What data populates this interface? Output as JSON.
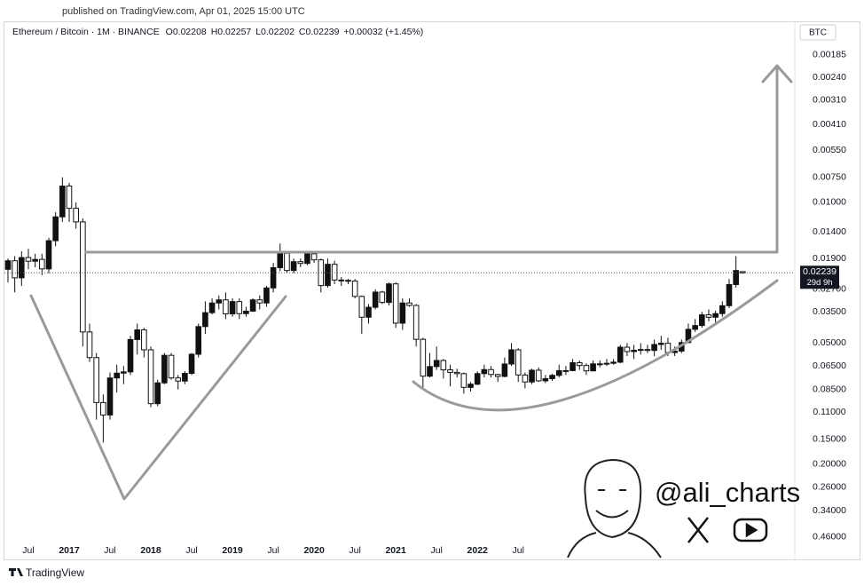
{
  "header": {
    "published": "published on TradingView.com, Apr 01, 2025 15:00 UTC"
  },
  "chart_data": {
    "type": "candlestick",
    "legend": {
      "symbol": "Ethereum / Bitcoin · 1M · BINANCE",
      "o": "O",
      "h": "H",
      "l": "L",
      "c": "C",
      "change": "+0.00032 (+1.45%)"
    },
    "y_unit": "BTC",
    "y_scale": "log",
    "inverted": true,
    "grid": false,
    "up_color": "#ffffff",
    "down_color": "#111111",
    "wick_color": "#111111",
    "countdown": "29d 9h",
    "x": [
      "2016-04",
      "2016-05",
      "2016-06",
      "2016-07",
      "2016-08",
      "2016-09",
      "2016-10",
      "2016-11",
      "2016-12",
      "2017-01",
      "2017-02",
      "2017-03",
      "2017-04",
      "2017-05",
      "2017-06",
      "2017-07",
      "2017-08",
      "2017-09",
      "2017-10",
      "2017-11",
      "2017-12",
      "2018-01",
      "2018-02",
      "2018-03",
      "2018-04",
      "2018-05",
      "2018-06",
      "2018-07",
      "2018-08",
      "2018-09",
      "2018-10",
      "2018-11",
      "2018-12",
      "2019-01",
      "2019-02",
      "2019-03",
      "2019-04",
      "2019-05",
      "2019-06",
      "2019-07",
      "2019-08",
      "2019-09",
      "2019-10",
      "2019-11",
      "2019-12",
      "2020-01",
      "2020-02",
      "2020-03",
      "2020-04",
      "2020-05",
      "2020-06",
      "2020-07",
      "2020-08",
      "2020-09",
      "2020-10",
      "2020-11",
      "2020-12",
      "2021-01",
      "2021-02",
      "2021-03",
      "2021-04",
      "2021-05",
      "2021-06",
      "2021-07",
      "2021-08",
      "2021-09",
      "2021-10",
      "2021-11",
      "2021-12",
      "2022-01",
      "2022-02",
      "2022-03",
      "2022-04",
      "2022-05",
      "2022-06",
      "2022-07",
      "2022-08",
      "2022-09",
      "2022-10",
      "2022-11",
      "2022-12",
      "2023-01",
      "2023-02",
      "2023-03",
      "2023-04",
      "2023-05",
      "2023-06",
      "2023-07",
      "2023-08",
      "2023-09",
      "2023-10",
      "2023-11",
      "2023-12",
      "2024-01",
      "2024-02",
      "2024-03",
      "2024-04",
      "2024-05",
      "2024-06",
      "2024-07",
      "2024-08",
      "2024-09",
      "2024-10",
      "2024-11",
      "2024-12",
      "2025-01",
      "2025-02",
      "2025-03",
      "2025-04"
    ],
    "open": [
      0.0215,
      0.0195,
      0.0237,
      0.0188,
      0.0196,
      0.0192,
      0.0214,
      0.0155,
      0.0118,
      0.0083,
      0.0107,
      0.0125,
      0.044,
      0.059,
      0.0987,
      0.1138,
      0.0745,
      0.0705,
      0.0695,
      0.048,
      0.043,
      0.054,
      0.1,
      0.0788,
      0.0575,
      0.0745,
      0.0772,
      0.0707,
      0.0568,
      0.0414,
      0.0353,
      0.0316,
      0.0305,
      0.0358,
      0.0311,
      0.0357,
      0.0347,
      0.0305,
      0.0316,
      0.0266,
      0.0211,
      0.0179,
      0.0218,
      0.0197,
      0.0201,
      0.018,
      0.0193,
      0.0259,
      0.0203,
      0.0243,
      0.0244,
      0.0246,
      0.0293,
      0.0372,
      0.0332,
      0.0279,
      0.0314,
      0.0254,
      0.0398,
      0.0316,
      0.0325,
      0.0479,
      0.073,
      0.0654,
      0.061,
      0.0679,
      0.0699,
      0.0709,
      0.083,
      0.08,
      0.0709,
      0.0677,
      0.0716,
      0.0732,
      0.0635,
      0.054,
      0.072,
      0.078,
      0.0682,
      0.077,
      0.0751,
      0.0723,
      0.0685,
      0.0685,
      0.0626,
      0.0646,
      0.0687,
      0.0634,
      0.0636,
      0.063,
      0.0622,
      0.0524,
      0.0551,
      0.0543,
      0.0538,
      0.0544,
      0.0508,
      0.0501,
      0.0557,
      0.0548,
      0.0497,
      0.0427,
      0.0409,
      0.0362,
      0.0372,
      0.0357,
      0.0326,
      0.0256,
      0.02208
    ],
    "high": [
      0.025,
      0.028,
      0.026,
      0.0215,
      0.021,
      0.023,
      0.0225,
      0.0165,
      0.0125,
      0.0125,
      0.0135,
      0.052,
      0.062,
      0.12,
      0.156,
      0.12,
      0.088,
      0.08,
      0.072,
      0.057,
      0.059,
      0.104,
      0.103,
      0.08,
      0.076,
      0.085,
      0.08,
      0.072,
      0.059,
      0.045,
      0.036,
      0.034,
      0.038,
      0.037,
      0.038,
      0.037,
      0.035,
      0.034,
      0.033,
      0.028,
      0.022,
      0.0225,
      0.0225,
      0.021,
      0.0205,
      0.02,
      0.028,
      0.0265,
      0.0255,
      0.026,
      0.0255,
      0.03,
      0.045,
      0.04,
      0.034,
      0.032,
      0.0325,
      0.042,
      0.043,
      0.033,
      0.052,
      0.083,
      0.074,
      0.068,
      0.075,
      0.082,
      0.074,
      0.089,
      0.087,
      0.081,
      0.074,
      0.074,
      0.078,
      0.074,
      0.065,
      0.078,
      0.084,
      0.08,
      0.078,
      0.079,
      0.077,
      0.074,
      0.072,
      0.069,
      0.068,
      0.072,
      0.069,
      0.066,
      0.065,
      0.064,
      0.063,
      0.058,
      0.06,
      0.057,
      0.056,
      0.058,
      0.054,
      0.058,
      0.058,
      0.056,
      0.05,
      0.044,
      0.042,
      0.039,
      0.04,
      0.037,
      0.0335,
      0.0265,
      0.02257
    ],
    "low": [
      0.019,
      0.0185,
      0.0175,
      0.017,
      0.018,
      0.018,
      0.015,
      0.0112,
      0.0075,
      0.008,
      0.01,
      0.012,
      0.04,
      0.056,
      0.09,
      0.07,
      0.064,
      0.065,
      0.046,
      0.04,
      0.042,
      0.052,
      0.076,
      0.056,
      0.056,
      0.072,
      0.069,
      0.056,
      0.04,
      0.031,
      0.03,
      0.029,
      0.028,
      0.03,
      0.03,
      0.033,
      0.03,
      0.029,
      0.026,
      0.02,
      0.016,
      0.0175,
      0.019,
      0.019,
      0.0175,
      0.0175,
      0.019,
      0.019,
      0.0195,
      0.0235,
      0.024,
      0.024,
      0.029,
      0.032,
      0.027,
      0.0275,
      0.025,
      0.025,
      0.03,
      0.03,
      0.032,
      0.047,
      0.056,
      0.052,
      0.06,
      0.064,
      0.067,
      0.07,
      0.078,
      0.069,
      0.064,
      0.065,
      0.071,
      0.059,
      0.05,
      0.053,
      0.07,
      0.067,
      0.066,
      0.072,
      0.071,
      0.064,
      0.065,
      0.06,
      0.061,
      0.063,
      0.061,
      0.061,
      0.06,
      0.06,
      0.051,
      0.05,
      0.051,
      0.05,
      0.051,
      0.048,
      0.046,
      0.047,
      0.052,
      0.048,
      0.04,
      0.038,
      0.035,
      0.034,
      0.0345,
      0.031,
      0.024,
      0.0185,
      0.02202
    ],
    "close": [
      0.0195,
      0.0237,
      0.0188,
      0.0196,
      0.0192,
      0.0214,
      0.0155,
      0.0118,
      0.0083,
      0.0107,
      0.0125,
      0.044,
      0.059,
      0.0987,
      0.1138,
      0.0745,
      0.0705,
      0.0695,
      0.048,
      0.043,
      0.054,
      0.1,
      0.0788,
      0.0575,
      0.0745,
      0.0772,
      0.0707,
      0.0568,
      0.0414,
      0.0353,
      0.0316,
      0.0305,
      0.0358,
      0.0311,
      0.0357,
      0.0347,
      0.0305,
      0.0316,
      0.0266,
      0.0211,
      0.0179,
      0.0218,
      0.0197,
      0.0201,
      0.018,
      0.0193,
      0.0259,
      0.0203,
      0.0243,
      0.0244,
      0.0246,
      0.0293,
      0.0372,
      0.0332,
      0.0279,
      0.0314,
      0.0254,
      0.0398,
      0.0316,
      0.0325,
      0.0479,
      0.073,
      0.0654,
      0.061,
      0.0679,
      0.0699,
      0.0709,
      0.083,
      0.08,
      0.0709,
      0.0677,
      0.0716,
      0.0732,
      0.0635,
      0.054,
      0.072,
      0.078,
      0.0682,
      0.077,
      0.0751,
      0.0723,
      0.0685,
      0.0685,
      0.0626,
      0.0646,
      0.0687,
      0.0634,
      0.0636,
      0.063,
      0.0622,
      0.0524,
      0.0551,
      0.0543,
      0.0538,
      0.0544,
      0.0508,
      0.0501,
      0.0557,
      0.0548,
      0.0497,
      0.0427,
      0.0409,
      0.0362,
      0.0372,
      0.0357,
      0.0326,
      0.0256,
      0.0218,
      0.02239
    ],
    "ylim": [
      0.00156,
      0.564
    ],
    "yticks": [
      0.00185,
      {
        "value": 0.0024,
        "label": "0.00240"
      },
      {
        "value": 0.0031,
        "label": "0.00310"
      },
      {
        "value": 0.0041,
        "label": "0.00410"
      },
      {
        "value": 0.0055,
        "label": "0.00550"
      },
      {
        "value": 0.0075,
        "label": "0.00750"
      },
      {
        "value": 0.01,
        "label": "0.01000"
      },
      {
        "value": 0.014,
        "label": "0.01400"
      },
      {
        "value": 0.019,
        "label": "0.01900"
      },
      {
        "value": 0.027,
        "label": "0.02700"
      },
      {
        "value": 0.035,
        "label": "0.03500"
      },
      {
        "value": 0.05,
        "label": "0.05000"
      },
      {
        "value": 0.065,
        "label": "0.06500"
      },
      {
        "value": 0.085,
        "label": "0.08500"
      },
      {
        "value": 0.11,
        "label": "0.11000"
      },
      {
        "value": 0.15,
        "label": "0.15000"
      },
      {
        "value": 0.2,
        "label": "0.20000"
      },
      {
        "value": 0.26,
        "label": "0.26000"
      },
      {
        "value": 0.34,
        "label": "0.34000"
      },
      {
        "value": 0.46,
        "label": "0.46000"
      }
    ],
    "xticks": [
      {
        "value": "2016-07",
        "label": "Jul"
      },
      {
        "value": "2017-01",
        "label": "2017"
      },
      {
        "value": "2017-07",
        "label": "Jul"
      },
      {
        "value": "2018-01",
        "label": "2018"
      },
      {
        "value": "2018-07",
        "label": "Jul"
      },
      {
        "value": "2019-01",
        "label": "2019"
      },
      {
        "value": "2019-07",
        "label": "Jul"
      },
      {
        "value": "2020-01",
        "label": "2020"
      },
      {
        "value": "2020-07",
        "label": "Jul"
      },
      {
        "value": "2021-01",
        "label": "2021"
      },
      {
        "value": "2021-07",
        "label": "Jul"
      },
      {
        "value": "2022-01",
        "label": "2022"
      },
      {
        "value": "2022-07",
        "label": "Jul"
      }
    ]
  },
  "watermark": {
    "handle": "@ali_charts"
  },
  "footer": {
    "brand": "TradingView"
  }
}
